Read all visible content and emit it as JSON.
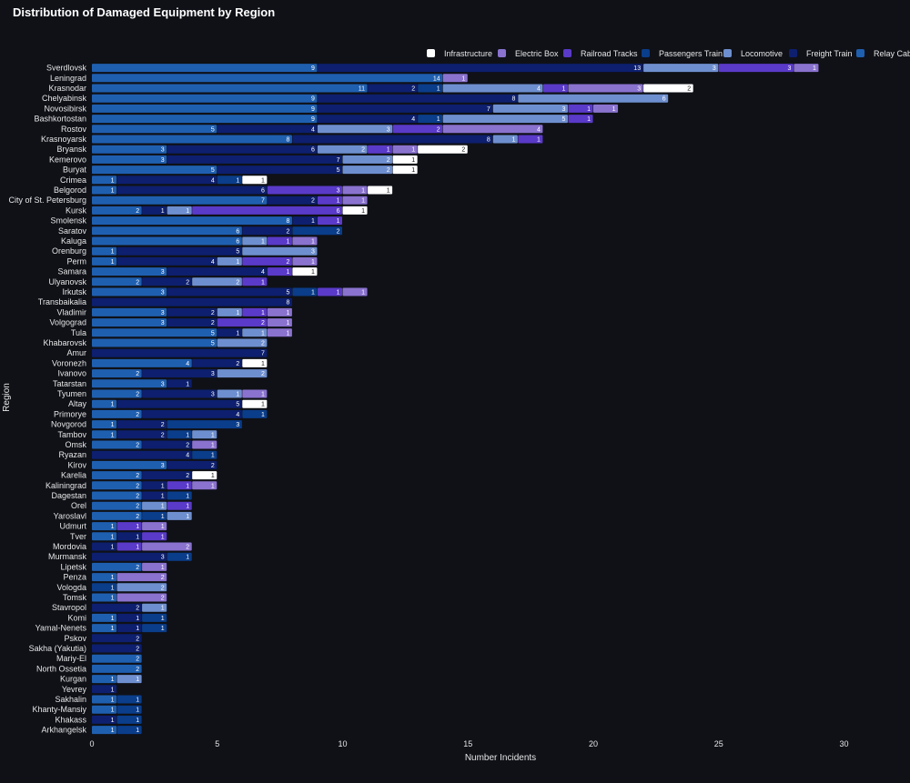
{
  "chart_data": {
    "type": "bar",
    "orientation": "horizontal",
    "stacked": true,
    "title": "Distribution of Damaged Equipment by Region",
    "xlabel": "Number Incidents",
    "ylabel": "Region",
    "xlim": [
      0,
      31
    ],
    "xticks": [
      0,
      5,
      10,
      15,
      20,
      25,
      30
    ],
    "legend_position": "top-right",
    "categories": [
      "Sverdlovsk",
      "Leningrad",
      "Krasnodar",
      "Chelyabinsk",
      "Novosibirsk",
      "Bashkortostan",
      "Rostov",
      "Krasnoyarsk",
      "Bryansk",
      "Kemerovo",
      "Buryat",
      "Crimea",
      "Belgorod",
      "City of St. Petersburg",
      "Kursk",
      "Smolensk",
      "Saratov",
      "Kaluga",
      "Orenburg",
      "Perm",
      "Samara",
      "Ulyanovsk",
      "Irkutsk",
      "Transbaikalia",
      "Vladimir",
      "Volgograd",
      "Tula",
      "Khabarovsk",
      "Amur",
      "Voronezh",
      "Ivanovo",
      "Tatarstan",
      "Tyumen",
      "Altay",
      "Primorye",
      "Novgorod",
      "Tambov",
      "Omsk",
      "Ryazan",
      "Kirov",
      "Karelia",
      "Kaliningrad",
      "Dagestan",
      "Orel",
      "Yaroslavl",
      "Udmurt",
      "Tver",
      "Mordovia",
      "Murmansk",
      "Lipetsk",
      "Penza",
      "Vologda",
      "Tomsk",
      "Stavropol",
      "Komi",
      "Yamal-Nenets",
      "Pskov",
      "Sakha (Yakutia)",
      "Mariy-El",
      "North Ossetia",
      "Kurgan",
      "Yevrey",
      "Sakhalin",
      "Khanty-Mansiy",
      "Khakass",
      "Arkhangelsk"
    ],
    "series": [
      {
        "name": "Relay Cabin",
        "color": "#1f5fb0",
        "values": [
          9,
          14,
          11,
          9,
          9,
          9,
          5,
          8,
          3,
          3,
          5,
          1,
          1,
          7,
          2,
          8,
          6,
          6,
          1,
          1,
          3,
          2,
          3,
          0,
          3,
          3,
          5,
          5,
          0,
          4,
          2,
          3,
          2,
          1,
          2,
          1,
          1,
          2,
          0,
          3,
          2,
          2,
          2,
          2,
          2,
          1,
          1,
          0,
          0,
          2,
          1,
          0,
          1,
          0,
          1,
          1,
          0,
          0,
          2,
          2,
          1,
          0,
          1,
          1,
          0,
          1
        ]
      },
      {
        "name": "Freight Train",
        "color": "#0d1f6e",
        "values": [
          13,
          0,
          2,
          8,
          7,
          4,
          4,
          8,
          6,
          7,
          5,
          4,
          6,
          2,
          1,
          1,
          2,
          0,
          5,
          4,
          4,
          2,
          5,
          8,
          2,
          2,
          1,
          0,
          7,
          2,
          3,
          1,
          3,
          5,
          4,
          2,
          2,
          2,
          4,
          2,
          2,
          1,
          1,
          0,
          0,
          0,
          1,
          1,
          3,
          0,
          0,
          0,
          0,
          2,
          1,
          1,
          2,
          2,
          0,
          0,
          0,
          1,
          0,
          0,
          1,
          0
        ]
      },
      {
        "name": "Passengers Train",
        "color": "#0a3d8a",
        "values": [
          0,
          0,
          1,
          0,
          0,
          1,
          0,
          0,
          0,
          0,
          0,
          1,
          0,
          0,
          0,
          0,
          2,
          0,
          0,
          0,
          0,
          0,
          1,
          0,
          0,
          0,
          0,
          0,
          0,
          0,
          0,
          0,
          0,
          0,
          1,
          3,
          1,
          0,
          1,
          0,
          0,
          0,
          1,
          0,
          1,
          0,
          0,
          0,
          1,
          0,
          0,
          1,
          0,
          0,
          1,
          1,
          0,
          0,
          0,
          0,
          0,
          0,
          1,
          1,
          1,
          1
        ]
      },
      {
        "name": "Locomotive",
        "color": "#6e8fcf",
        "values": [
          3,
          0,
          4,
          6,
          3,
          5,
          3,
          1,
          2,
          2,
          2,
          0,
          0,
          0,
          1,
          0,
          0,
          1,
          3,
          1,
          0,
          2,
          0,
          0,
          1,
          0,
          1,
          2,
          0,
          0,
          2,
          0,
          1,
          0,
          0,
          0,
          1,
          0,
          0,
          0,
          0,
          0,
          0,
          1,
          1,
          0,
          0,
          0,
          0,
          0,
          0,
          2,
          0,
          1,
          0,
          0,
          0,
          0,
          0,
          0,
          1,
          0,
          0,
          0,
          0,
          0
        ]
      },
      {
        "name": "Railroad Tracks",
        "color": "#5a3ac8",
        "values": [
          3,
          0,
          1,
          0,
          1,
          1,
          2,
          1,
          1,
          0,
          0,
          0,
          3,
          1,
          6,
          1,
          0,
          1,
          0,
          2,
          1,
          1,
          1,
          0,
          1,
          2,
          0,
          0,
          0,
          0,
          0,
          0,
          0,
          0,
          0,
          0,
          0,
          0,
          0,
          0,
          0,
          1,
          0,
          1,
          0,
          1,
          1,
          1,
          0,
          0,
          0,
          0,
          0,
          0,
          0,
          0,
          0,
          0,
          0,
          0,
          0,
          0,
          0,
          0,
          0,
          0
        ]
      },
      {
        "name": "Electric Box",
        "color": "#8a72cf",
        "values": [
          1,
          1,
          3,
          0,
          1,
          0,
          4,
          0,
          1,
          0,
          0,
          0,
          1,
          1,
          0,
          0,
          0,
          1,
          0,
          1,
          0,
          0,
          1,
          0,
          1,
          1,
          1,
          0,
          0,
          0,
          0,
          0,
          1,
          0,
          0,
          0,
          0,
          1,
          0,
          0,
          0,
          1,
          0,
          0,
          0,
          1,
          0,
          2,
          0,
          1,
          2,
          0,
          2,
          0,
          0,
          0,
          0,
          0,
          0,
          0,
          0,
          0,
          0,
          0,
          0,
          0
        ]
      },
      {
        "name": "Infrastructure",
        "color": "#ffffff",
        "values": [
          0,
          0,
          2,
          0,
          0,
          0,
          0,
          0,
          2,
          1,
          1,
          1,
          1,
          0,
          1,
          0,
          0,
          0,
          0,
          0,
          1,
          0,
          0,
          0,
          0,
          0,
          0,
          0,
          0,
          1,
          0,
          0,
          0,
          1,
          0,
          0,
          0,
          0,
          0,
          0,
          1,
          0,
          0,
          0,
          0,
          0,
          0,
          0,
          0,
          0,
          0,
          0,
          0,
          0,
          0,
          0,
          0,
          0,
          0,
          0,
          0,
          0,
          0,
          0,
          0,
          0
        ]
      }
    ],
    "legend_order": [
      "Infrastructure",
      "Electric Box",
      "Railroad Tracks",
      "Passengers Train",
      "Locomotive",
      "Freight Train",
      "Relay Cabin"
    ]
  }
}
